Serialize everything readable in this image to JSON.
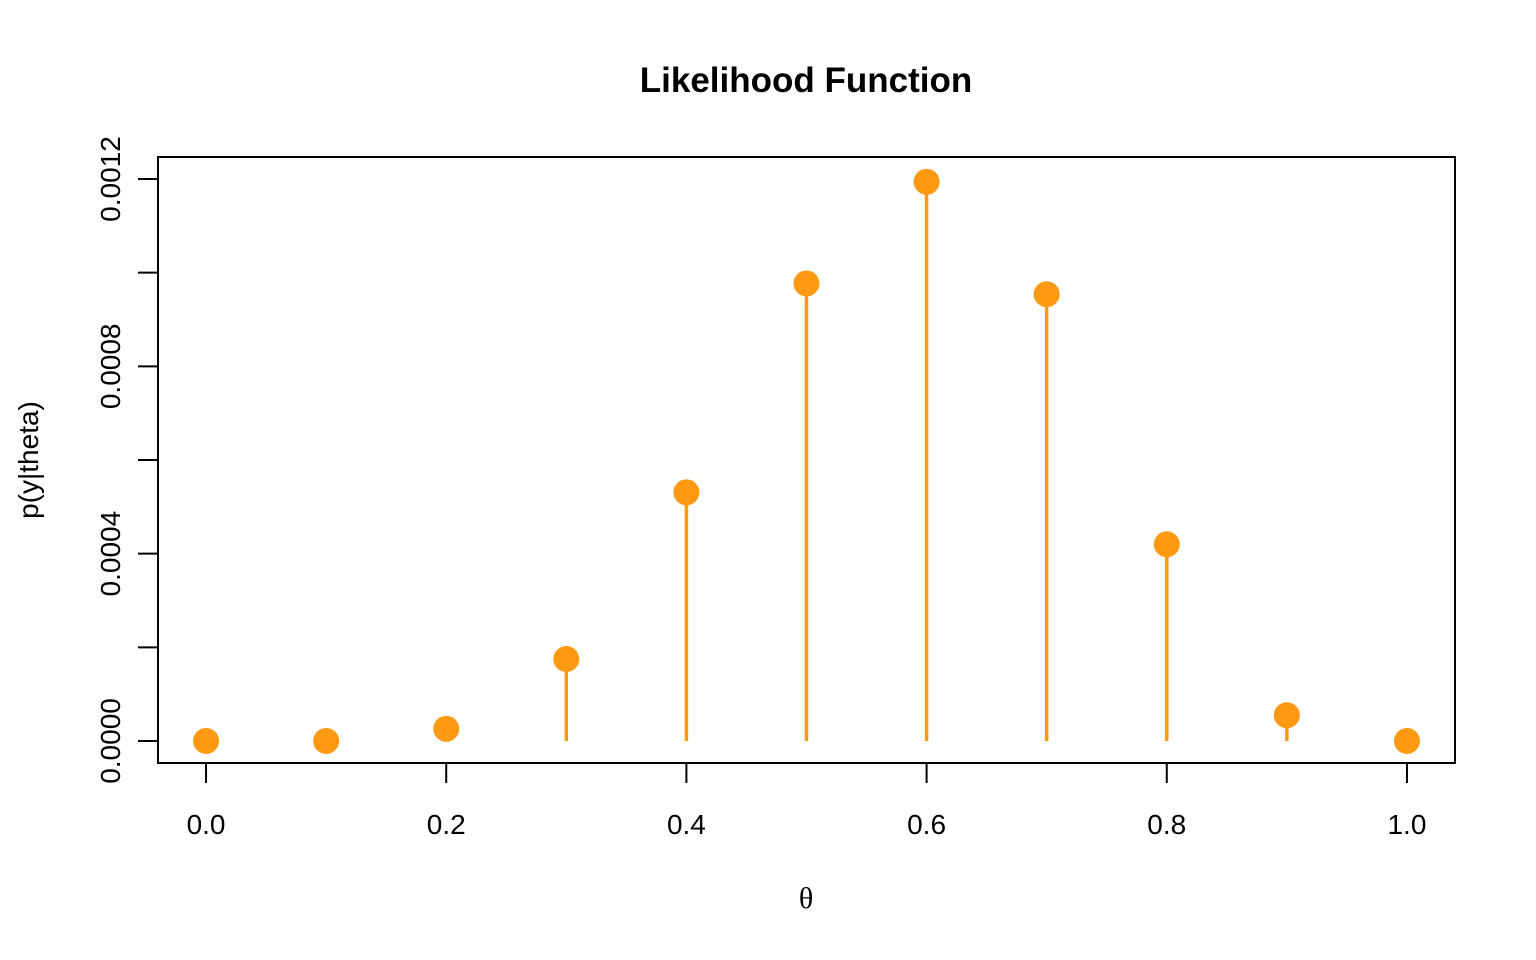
{
  "chart_data": {
    "type": "scatter",
    "style": "lollipop",
    "title": "Likelihood Function",
    "xlabel": "θ",
    "ylabel": "p(y|theta)",
    "x": [
      0.0,
      0.1,
      0.2,
      0.3,
      0.4,
      0.5,
      0.6,
      0.7,
      0.8,
      0.9,
      1.0
    ],
    "y": [
      0.0,
      0.0,
      2.6e-05,
      0.000175,
      0.000531,
      0.000977,
      0.001194,
      0.000954,
      0.00042,
      5.5e-05,
      0.0
    ],
    "xlim": [
      -0.04,
      1.04
    ],
    "ylim": [
      -4.7e-05,
      0.001247
    ],
    "xticks": [
      0.0,
      0.2,
      0.4,
      0.6,
      0.8,
      1.0
    ],
    "xtick_labels": [
      "0.0",
      "0.2",
      "0.4",
      "0.6",
      "0.8",
      "1.0"
    ],
    "yticks": [
      0.0,
      0.0002,
      0.0004,
      0.0006,
      0.0008,
      0.001,
      0.0012
    ],
    "ytick_labels": [
      "0.0000",
      "",
      "0.0004",
      "",
      "0.0008",
      "",
      "0.0012"
    ],
    "color": "#ff9912",
    "grid": false,
    "legend": "none"
  }
}
